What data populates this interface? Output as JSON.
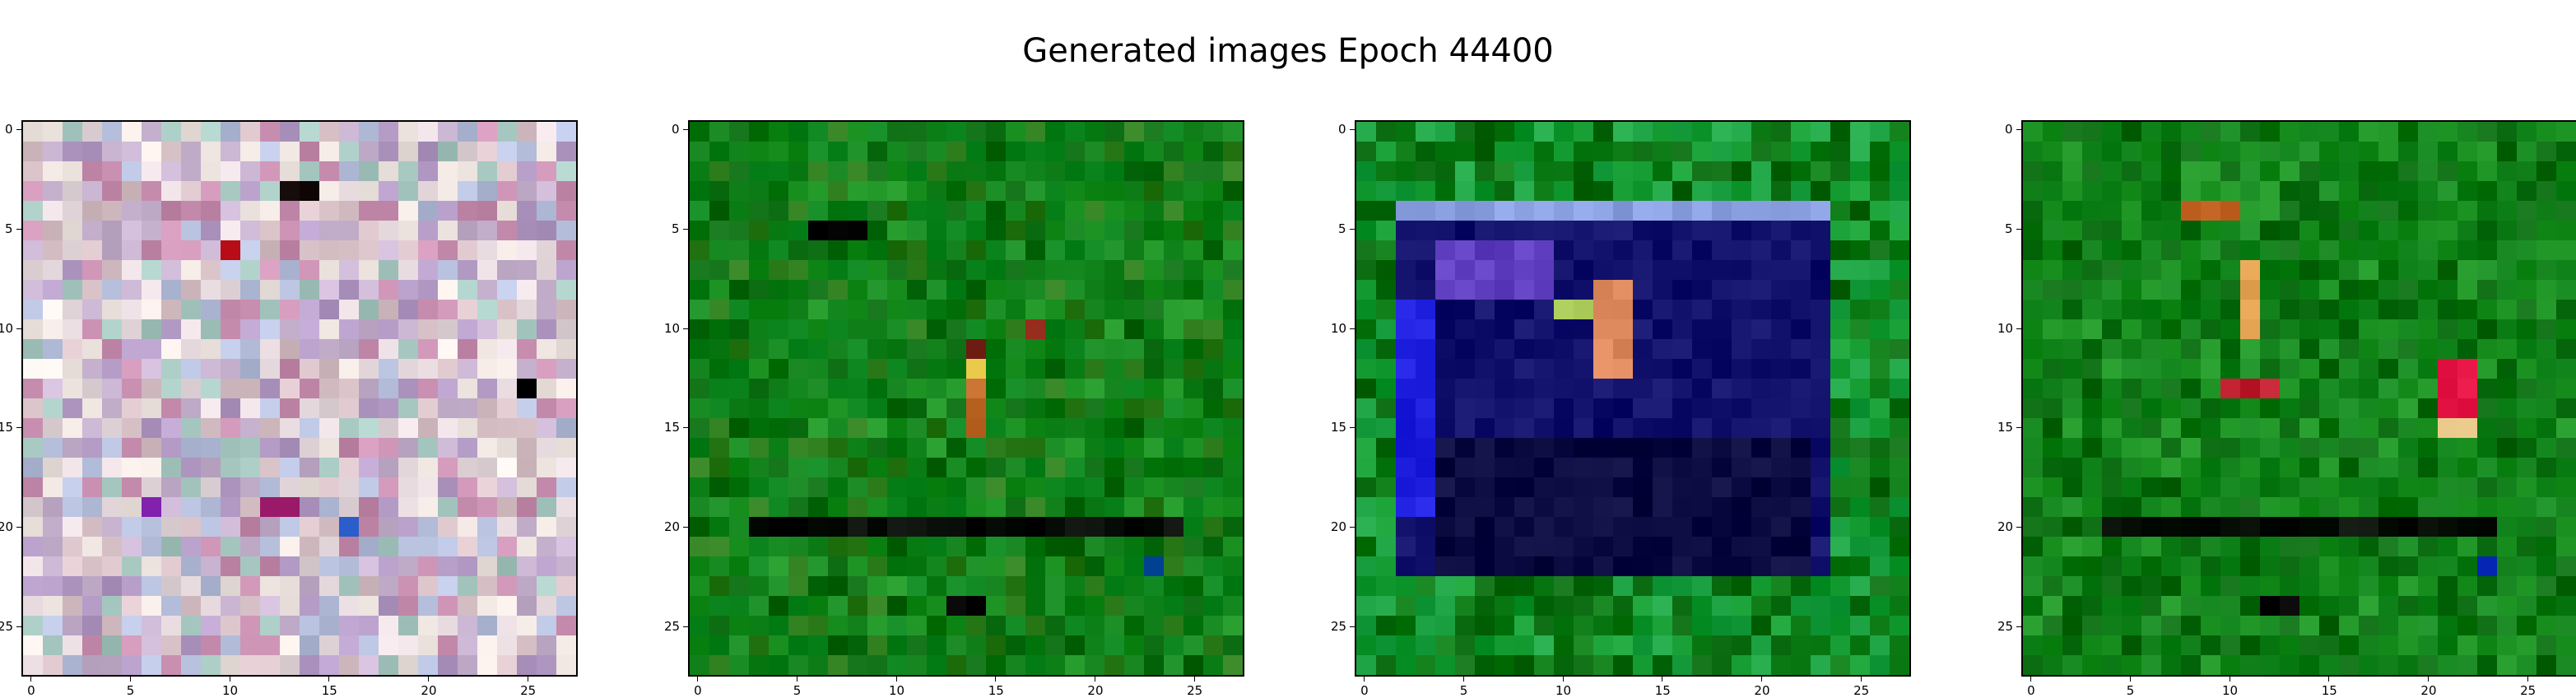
{
  "figure": {
    "title": "Generated images Epoch 44400"
  },
  "chart_data": [
    {
      "type": "heatmap",
      "subtype": "rgb-image",
      "grid": {
        "rows": 28,
        "cols": 28
      },
      "title": "",
      "xticks": [
        "0",
        "5",
        "10",
        "15",
        "20",
        "25"
      ],
      "yticks": [
        "0",
        "5",
        "10",
        "15",
        "20",
        "25"
      ],
      "grid_lines": false,
      "palette": [
        "#c7b2cf",
        "#e5d8dd",
        "#b6bfdc",
        "#d8c2c8",
        "#b39bc6",
        "#f0e6e2",
        "#a8c9c2",
        "#c98fb0"
      ],
      "description_regions": [
        {
          "rows": [
            0,
            27
          ],
          "cols": [
            0,
            27
          ],
          "color": "#d2c3d6"
        },
        {
          "rows": [
            6,
            6
          ],
          "cols": [
            10,
            10
          ],
          "color": "#c0141f"
        },
        {
          "rows": [
            3,
            3
          ],
          "cols": [
            13,
            14
          ],
          "color": "#1a1010"
        },
        {
          "rows": [
            13,
            13
          ],
          "cols": [
            25,
            25
          ],
          "color": "#050505"
        },
        {
          "rows": [
            19,
            19
          ],
          "cols": [
            12,
            13
          ],
          "color": "#9c1b6a"
        },
        {
          "rows": [
            20,
            20
          ],
          "cols": [
            16,
            16
          ],
          "color": "#2052c0"
        },
        {
          "rows": [
            19,
            19
          ],
          "cols": [
            6,
            6
          ],
          "color": "#7b1ba8"
        }
      ]
    },
    {
      "type": "heatmap",
      "subtype": "rgb-image",
      "grid": {
        "rows": 28,
        "cols": 28
      },
      "title": "",
      "xticks": [
        "0",
        "5",
        "10",
        "15",
        "20",
        "25"
      ],
      "yticks": [
        "0",
        "5",
        "10",
        "15",
        "20",
        "25"
      ],
      "grid_lines": false,
      "palette": [
        "#0c7a14",
        "#12861c",
        "#0a6a10",
        "#1a9020",
        "#08801a",
        "#2a7a1a"
      ],
      "description_regions": [
        {
          "rows": [
            20,
            20
          ],
          "cols": [
            3,
            24
          ],
          "color": "#050a05"
        },
        {
          "rows": [
            24,
            24
          ],
          "cols": [
            13,
            14
          ],
          "color": "#000000"
        },
        {
          "rows": [
            13,
            15
          ],
          "cols": [
            14,
            14
          ],
          "color": "#c06a2a"
        },
        {
          "rows": [
            12,
            12
          ],
          "cols": [
            14,
            14
          ],
          "color": "#e0c040"
        },
        {
          "rows": [
            11,
            11
          ],
          "cols": [
            14,
            14
          ],
          "color": "#6a1a10"
        },
        {
          "rows": [
            10,
            10
          ],
          "cols": [
            17,
            17
          ],
          "color": "#8a2010"
        },
        {
          "rows": [
            5,
            5
          ],
          "cols": [
            6,
            8
          ],
          "color": "#050505"
        },
        {
          "rows": [
            22,
            22
          ],
          "cols": [
            23,
            23
          ],
          "color": "#1050a0"
        }
      ]
    },
    {
      "type": "heatmap",
      "subtype": "rgb-image",
      "grid": {
        "rows": 28,
        "cols": 28
      },
      "title": "",
      "xticks": [
        "0",
        "5",
        "10",
        "15",
        "20",
        "25"
      ],
      "yticks": [
        "0",
        "5",
        "10",
        "15",
        "20",
        "25"
      ],
      "grid_lines": false,
      "palette": [
        "#0c7a14",
        "#129a30",
        "#0a6a10",
        "#1aa040"
      ],
      "description_regions": [
        {
          "rows": [
            4,
            22
          ],
          "cols": [
            2,
            23
          ],
          "color": "#10106a"
        },
        {
          "rows": [
            4,
            4
          ],
          "cols": [
            2,
            23
          ],
          "color": "#8aa0e0"
        },
        {
          "rows": [
            9,
            19
          ],
          "cols": [
            2,
            3
          ],
          "color": "#2020e0"
        },
        {
          "rows": [
            16,
            22
          ],
          "cols": [
            4,
            22
          ],
          "color": "#0a0a40"
        },
        {
          "rows": [
            8,
            12
          ],
          "cols": [
            12,
            13
          ],
          "color": "#e08a60"
        },
        {
          "rows": [
            6,
            8
          ],
          "cols": [
            4,
            9
          ],
          "color": "#6040c0"
        },
        {
          "rows": [
            9,
            9
          ],
          "cols": [
            10,
            11
          ],
          "color": "#b0d060"
        }
      ]
    },
    {
      "type": "heatmap",
      "subtype": "rgb-image",
      "grid": {
        "rows": 28,
        "cols": 28
      },
      "title": "",
      "xticks": [
        "0",
        "5",
        "10",
        "15",
        "20",
        "25"
      ],
      "yticks": [
        "0",
        "5",
        "10",
        "15",
        "20",
        "25"
      ],
      "grid_lines": false,
      "palette": [
        "#0c7a14",
        "#12861c",
        "#0a6a10",
        "#1a9020"
      ],
      "description_regions": [
        {
          "rows": [
            20,
            20
          ],
          "cols": [
            4,
            23
          ],
          "color": "#081008"
        },
        {
          "rows": [
            4,
            4
          ],
          "cols": [
            8,
            10
          ],
          "color": "#c06020"
        },
        {
          "rows": [
            7,
            10
          ],
          "cols": [
            11,
            11
          ],
          "color": "#e0a050"
        },
        {
          "rows": [
            13,
            13
          ],
          "cols": [
            10,
            12
          ],
          "color": "#c02030"
        },
        {
          "rows": [
            12,
            14
          ],
          "cols": [
            21,
            22
          ],
          "color": "#e01040"
        },
        {
          "rows": [
            15,
            15
          ],
          "cols": [
            21,
            22
          ],
          "color": "#e0c080"
        },
        {
          "rows": [
            24,
            24
          ],
          "cols": [
            12,
            13
          ],
          "color": "#000000"
        },
        {
          "rows": [
            22,
            22
          ],
          "cols": [
            23,
            23
          ],
          "color": "#1030c0"
        }
      ]
    }
  ]
}
